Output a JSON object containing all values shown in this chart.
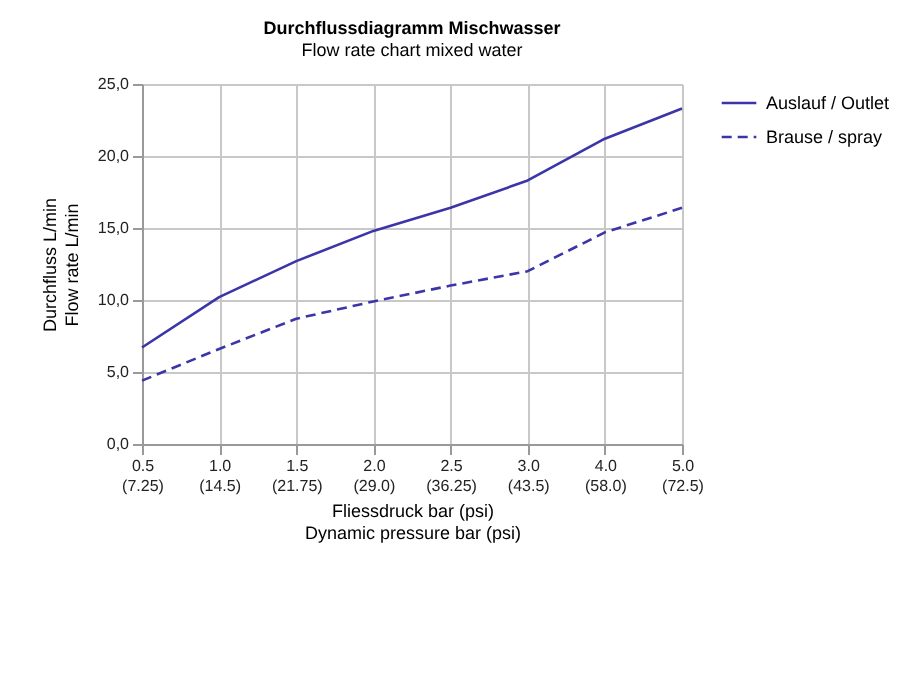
{
  "chart_data": {
    "type": "line",
    "title": "Durchflussdiagramm Mischwasser",
    "subtitle": "Flow rate chart  mixed water",
    "xlabel": "Fliessdruck bar (psi)\nDynamic pressure bar (psi)",
    "ylabel": "Durchfluss L/min\nFlow rate L/min",
    "categories": [
      "0.5\n(7.25)",
      "1.0\n(14.5)",
      "1.5\n(21.75)",
      "2.0\n(29.0)",
      "2.5\n(36.25)",
      "3.0\n(43.5)",
      "4.0\n(58.0)",
      "5.0\n(72.5)"
    ],
    "series": [
      {
        "name": "Auslauf / Outlet",
        "color": "#3b35a8",
        "line_style": "solid",
        "values": [
          6.7,
          10.2,
          12.7,
          14.8,
          16.4,
          18.3,
          21.2,
          23.3
        ]
      },
      {
        "name": "Brause / spray",
        "color": "#3b35a8",
        "line_style": "dashed",
        "values": [
          4.4,
          6.6,
          8.7,
          9.9,
          11.0,
          12.0,
          14.7,
          16.4
        ]
      }
    ],
    "ylim": [
      0,
      25
    ],
    "yticks": [
      {
        "value": 0,
        "label": "0,0"
      },
      {
        "value": 5,
        "label": "5,0"
      },
      {
        "value": 10,
        "label": "10,0"
      },
      {
        "value": 15,
        "label": "15,0"
      },
      {
        "value": 20,
        "label": "20,0"
      },
      {
        "value": 25,
        "label": "25,0"
      }
    ],
    "grid": true,
    "legend": "right",
    "marker": "none"
  }
}
